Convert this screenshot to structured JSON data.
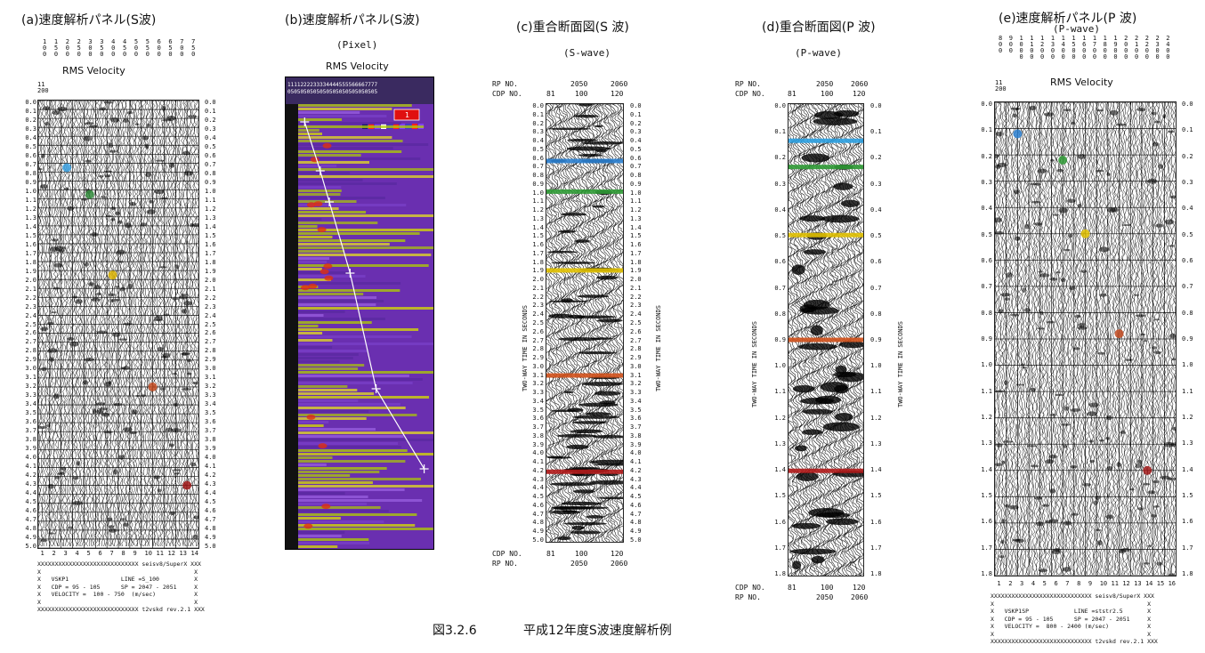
{
  "panels": {
    "a": {
      "title": "(a)速度解析パネル(S波)",
      "subtitle": "RMS Velocity",
      "velocity_ticks": [
        "1\n0\n0",
        "1\n5\n0",
        "2\n0\n0",
        "2\n5\n0",
        "3\n0\n0",
        "3\n5\n0",
        "4\n0\n0",
        "4\n5\n0",
        "5\n0\n0",
        "5\n5\n0",
        "6\n0\n0",
        "6\n5\n0",
        "7\n0\n0",
        "7\n5\n0"
      ],
      "corner_label": "11\n200",
      "time_ticks": [
        "0.0",
        "0.1",
        "0.2",
        "0.3",
        "0.4",
        "0.5",
        "0.6",
        "0.7",
        "0.8",
        "0.9",
        "1.0",
        "1.1",
        "1.2",
        "1.3",
        "1.4",
        "1.5",
        "1.6",
        "1.7",
        "1.8",
        "1.9",
        "2.0",
        "2.1",
        "2.2",
        "2.3",
        "2.4",
        "2.5",
        "2.6",
        "2.7",
        "2.8",
        "2.9",
        "3.0",
        "3.1",
        "3.2",
        "3.3",
        "3.4",
        "3.5",
        "3.6",
        "3.7",
        "3.8",
        "3.9",
        "4.0",
        "4.1",
        "4.2",
        "4.3",
        "4.4",
        "4.5",
        "4.6",
        "4.7",
        "4.8",
        "4.9",
        "5.0"
      ],
      "bottom_ticks": [
        "1",
        "2",
        "3",
        "4",
        "5",
        "6",
        "7",
        "8",
        "9",
        "10",
        "11",
        "12",
        "13",
        "14"
      ],
      "info": "XXXXXXXXXXXXXXXXXXXXXXXXXXXXX seisv8/SuperX XXX\nX                                            X\nX   VSKP1               LINE =S_100          X\nX   CDP = 95 - 105      SP = 2047 - 2051     X\nX   VELOCITY =  100 - 750  (m/sec)           X\nX                                            X\nXXXXXXXXXXXXXXXXXXXXXXXXXXXXX t2vskd rev.2.1 XXX",
      "picks": [
        {
          "t": 0.75,
          "v": 3,
          "color": "#3aa0e0"
        },
        {
          "t": 1.05,
          "v": 5,
          "color": "#2f8a3a"
        },
        {
          "t": 1.95,
          "v": 7,
          "color": "#d8b000"
        },
        {
          "t": 3.2,
          "v": 10.5,
          "color": "#c24a20"
        },
        {
          "t": 4.3,
          "v": 13.5,
          "color": "#a01818"
        }
      ]
    },
    "b": {
      "title": "(b)速度解析パネル(S波)",
      "subtitle1": "(Pixel)",
      "subtitle2": "RMS Velocity",
      "header_ticks": "1111222233334444555566667777",
      "header_ticks2": "0505050505050505050505050505",
      "legend_value": "1",
      "picks": [
        {
          "t": 0.2,
          "v": 0.05
        },
        {
          "t": 0.75,
          "v": 0.17
        },
        {
          "t": 1.1,
          "v": 0.24
        },
        {
          "t": 1.9,
          "v": 0.4
        },
        {
          "t": 3.2,
          "v": 0.6
        },
        {
          "t": 4.1,
          "v": 0.97
        }
      ]
    },
    "c": {
      "title": "(c)重合断面図(S 波)",
      "subtitle": "(S-wave)",
      "rp_label": "RP  NO.",
      "cdp_label": "CDP NO.",
      "rp_ticks": [
        "2050",
        "2060"
      ],
      "cdp_ticks": [
        "81",
        "100",
        "120"
      ],
      "axis_label": "TWO-WAY TIME IN SECONDS",
      "time_ticks": [
        "0.0",
        "0.1",
        "0.2",
        "0.3",
        "0.4",
        "0.5",
        "0.6",
        "0.7",
        "0.8",
        "0.9",
        "1.0",
        "1.1",
        "1.2",
        "1.3",
        "1.4",
        "1.5",
        "1.6",
        "1.7",
        "1.8",
        "1.9",
        "2.0",
        "2.1",
        "2.2",
        "2.3",
        "2.4",
        "2.5",
        "2.6",
        "2.7",
        "2.8",
        "2.9",
        "3.0",
        "3.1",
        "3.2",
        "3.3",
        "3.4",
        "3.5",
        "3.6",
        "3.7",
        "3.8",
        "3.9",
        "4.0",
        "4.1",
        "4.2",
        "4.3",
        "4.4",
        "4.5",
        "4.6",
        "4.7",
        "4.8",
        "4.9",
        "5.0"
      ],
      "horizons": [
        {
          "t": 0.65,
          "color": "#2a7fd0"
        },
        {
          "t": 1.0,
          "color": "#2f9a35"
        },
        {
          "t": 1.9,
          "color": "#e0c000"
        },
        {
          "t": 3.1,
          "color": "#d0501a"
        },
        {
          "t": 4.2,
          "color": "#b01818"
        }
      ]
    },
    "d": {
      "title": "(d)重合断面図(P 波)",
      "subtitle": "(P-wave)",
      "rp_label": "RP  NO.",
      "cdp_label": "CDP NO.",
      "rp_ticks": [
        "2050",
        "2060"
      ],
      "cdp_ticks": [
        "81",
        "100",
        "120"
      ],
      "axis_label": "TWO-WAY TIME IN SECONDS",
      "time_ticks": [
        "0.0",
        "0.1",
        "0.2",
        "0.3",
        "0.4",
        "0.5",
        "0.6",
        "0.7",
        "0.8",
        "0.9",
        "1.0",
        "1.1",
        "1.2",
        "1.3",
        "1.4",
        "1.5",
        "1.6",
        "1.7",
        "1.8"
      ],
      "horizons": [
        {
          "t": 0.14,
          "color": "#2a9fe0"
        },
        {
          "t": 0.24,
          "color": "#2f9a35"
        },
        {
          "t": 0.5,
          "color": "#e0c000"
        },
        {
          "t": 0.9,
          "color": "#d0501a"
        },
        {
          "t": 1.4,
          "color": "#b01818"
        }
      ]
    },
    "e": {
      "title": "(e)速度解析パネル(P 波)",
      "subtitle1": "(P-wave)",
      "subtitle2": "RMS Velocity",
      "velocity_ticks": [
        "8\n0\n0",
        "9\n0\n0",
        "1\n0\n0\n0",
        "1\n1\n0\n0",
        "1\n2\n0\n0",
        "1\n3\n0\n0",
        "1\n4\n0\n0",
        "1\n5\n0\n0",
        "1\n6\n0\n0",
        "1\n7\n0\n0",
        "1\n8\n0\n0",
        "1\n9\n0\n0",
        "2\n0\n0\n0",
        "2\n1\n0\n0",
        "2\n2\n0\n0",
        "2\n3\n0\n0",
        "2\n4\n0\n0"
      ],
      "corner_label": "11\n200",
      "time_ticks": [
        "0.0",
        "0.1",
        "0.2",
        "0.3",
        "0.4",
        "0.5",
        "0.6",
        "0.7",
        "0.8",
        "0.9",
        "1.0",
        "1.1",
        "1.2",
        "1.3",
        "1.4",
        "1.5",
        "1.6",
        "1.7",
        "1.8"
      ],
      "bottom_ticks": [
        "1",
        "2",
        "3",
        "4",
        "5",
        "6",
        "7",
        "8",
        "9",
        "10",
        "11",
        "12",
        "13",
        "14",
        "15",
        "16"
      ],
      "info": "XXXXXXXXXXXXXXXXXXXXXXXXXXXXX seisv8/SuperX XXX\nX                                            X\nX   VSKP1SP             LINE =ststr2.5       X\nX   CDP = 95 - 105      SP = 2047 - 2051     X\nX   VELOCITY =  800 - 2400 (m/sec)           X\nX                                            X\nXXXXXXXXXXXXXXXXXXXXXXXXXXXXX t2vskd rev.2.1 XXX",
      "picks": [
        {
          "t": 0.12,
          "v": 2.5,
          "color": "#2a7fd0"
        },
        {
          "t": 0.22,
          "v": 6.5,
          "color": "#2f9a35"
        },
        {
          "t": 0.5,
          "v": 8.5,
          "color": "#e0c000"
        },
        {
          "t": 0.88,
          "v": 11.5,
          "color": "#c24a20"
        },
        {
          "t": 1.4,
          "v": 14,
          "color": "#a01818"
        }
      ]
    }
  },
  "caption": {
    "figure_no": "図3.2.6",
    "text": "平成12年度S波速度解析例"
  }
}
